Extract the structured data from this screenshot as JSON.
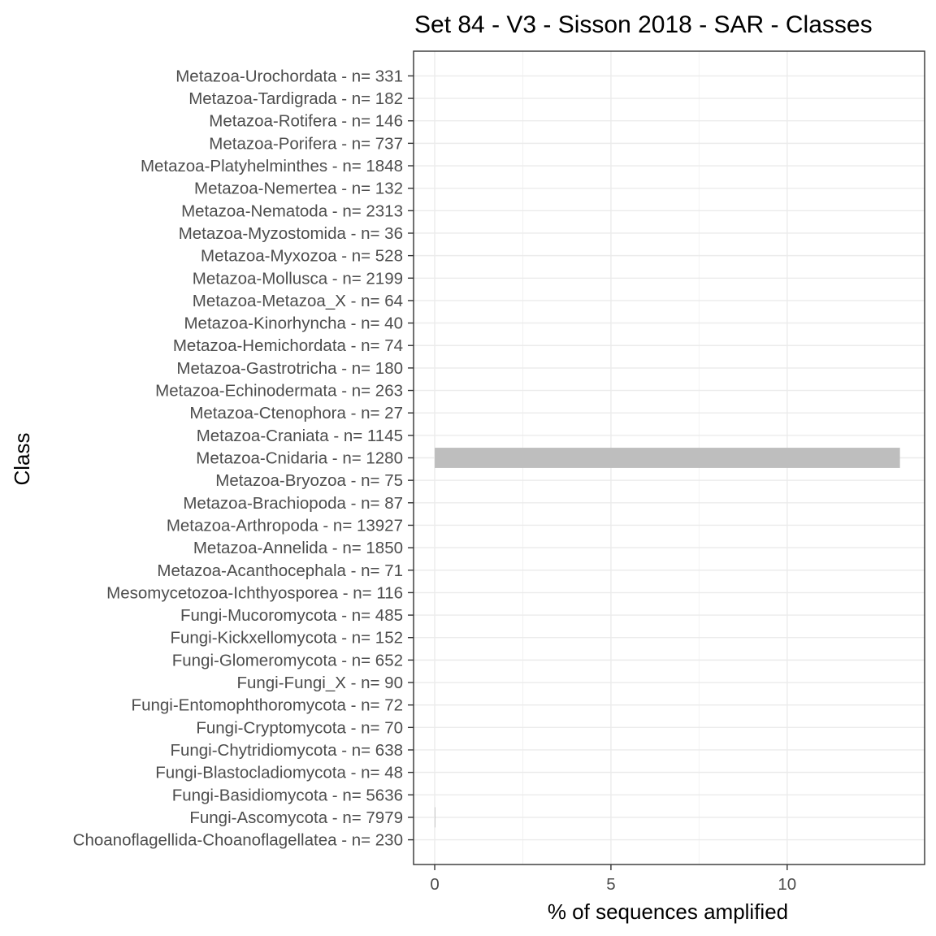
{
  "chart_data": {
    "type": "bar",
    "orientation": "horizontal",
    "title": "Set 84 - V3 - Sisson 2018 - SAR - Classes",
    "xlabel": "% of sequences amplified",
    "ylabel": "Class",
    "xlim": [
      -0.6,
      13.9
    ],
    "xticks": [
      0,
      5,
      10
    ],
    "grid": true,
    "bar_color": "#bebebe",
    "categories": [
      "Choanoflagellida-Choanoflagellatea - n= 230",
      "Fungi-Ascomycota - n= 7979",
      "Fungi-Basidiomycota - n= 5636",
      "Fungi-Blastocladiomycota - n= 48",
      "Fungi-Chytridiomycota - n= 638",
      "Fungi-Cryptomycota - n= 70",
      "Fungi-Entomophthoromycota - n= 72",
      "Fungi-Fungi_X - n= 90",
      "Fungi-Glomeromycota - n= 652",
      "Fungi-Kickxellomycota - n= 152",
      "Fungi-Mucoromycota - n= 485",
      "Mesomycetozoa-Ichthyosporea - n= 116",
      "Metazoa-Acanthocephala - n= 71",
      "Metazoa-Annelida - n= 1850",
      "Metazoa-Arthropoda - n= 13927",
      "Metazoa-Brachiopoda - n= 87",
      "Metazoa-Bryozoa - n= 75",
      "Metazoa-Cnidaria - n= 1280",
      "Metazoa-Craniata - n= 1145",
      "Metazoa-Ctenophora - n= 27",
      "Metazoa-Echinodermata - n= 263",
      "Metazoa-Gastrotricha - n= 180",
      "Metazoa-Hemichordata - n= 74",
      "Metazoa-Kinorhyncha - n= 40",
      "Metazoa-Metazoa_X - n= 64",
      "Metazoa-Mollusca - n= 2199",
      "Metazoa-Myxozoa - n= 528",
      "Metazoa-Myzostomida - n= 36",
      "Metazoa-Nematoda - n= 2313",
      "Metazoa-Nemertea - n= 132",
      "Metazoa-Platyhelminthes - n= 1848",
      "Metazoa-Porifera - n= 737",
      "Metazoa-Rotifera - n= 146",
      "Metazoa-Tardigrada - n= 182",
      "Metazoa-Urochordata - n= 331"
    ],
    "values": [
      0,
      0.01,
      0,
      0,
      0,
      0,
      0,
      0,
      0,
      0,
      0,
      0,
      0,
      0,
      0,
      0,
      0,
      13.2,
      0,
      0,
      0,
      0,
      0,
      0,
      0,
      0,
      0,
      0,
      0,
      0,
      0,
      0,
      0,
      0,
      0
    ]
  }
}
